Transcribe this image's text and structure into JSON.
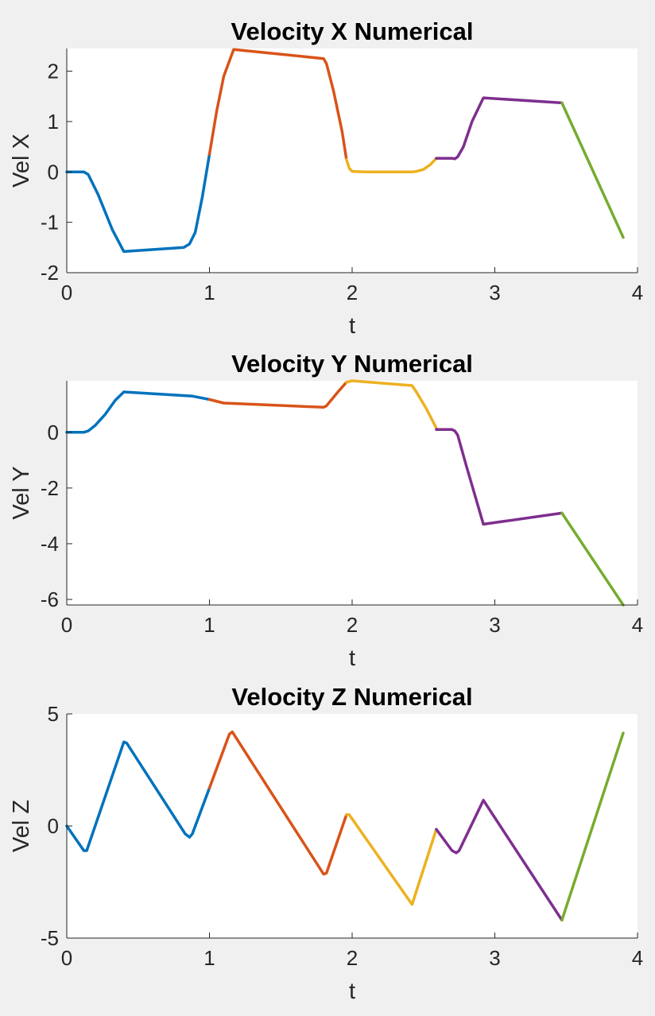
{
  "colors": {
    "background": "#f0f0f0",
    "axes": "#ffffff",
    "axis_line": "#262626",
    "seg1": "#0072BD",
    "seg2": "#D95319",
    "seg3": "#EDB120",
    "seg4": "#7E2F8E",
    "seg5": "#77AC30"
  },
  "chart_data": [
    {
      "type": "line",
      "title": "Velocity X Numerical",
      "xlabel": "t",
      "ylabel": "Vel X",
      "xlim": [
        0,
        4
      ],
      "ylim": [
        -2,
        2.45
      ],
      "xticks": [
        "0",
        "1",
        "2",
        "3",
        "4"
      ],
      "yticks": [
        "-2",
        "-1",
        "0",
        "1",
        "2"
      ],
      "grid": false,
      "series": [
        {
          "color": "#0072BD",
          "x": [
            0,
            0.12,
            0.15,
            0.22,
            0.32,
            0.4,
            0.82,
            0.86,
            0.9,
            0.95,
            1.0
          ],
          "y": [
            0,
            0,
            -0.05,
            -0.45,
            -1.15,
            -1.58,
            -1.5,
            -1.43,
            -1.2,
            -0.5,
            0.35
          ]
        },
        {
          "color": "#D95319",
          "x": [
            1.0,
            1.05,
            1.1,
            1.15,
            1.17,
            1.8,
            1.82,
            1.87,
            1.93,
            1.96
          ],
          "y": [
            0.35,
            1.2,
            1.9,
            2.28,
            2.43,
            2.25,
            2.15,
            1.6,
            0.8,
            0.25
          ]
        },
        {
          "color": "#EDB120",
          "x": [
            1.96,
            1.98,
            2.0,
            2.1,
            2.42,
            2.45,
            2.5,
            2.55,
            2.59
          ],
          "y": [
            0.25,
            0.07,
            0.01,
            0.0,
            0.0,
            0.01,
            0.05,
            0.15,
            0.27
          ]
        },
        {
          "color": "#7E2F8E",
          "x": [
            2.59,
            2.7,
            2.72,
            2.74,
            2.78,
            2.84,
            2.92,
            3.47
          ],
          "y": [
            0.27,
            0.27,
            0.26,
            0.3,
            0.5,
            1.0,
            1.47,
            1.37
          ]
        },
        {
          "color": "#77AC30",
          "x": [
            3.47,
            3.9
          ],
          "y": [
            1.37,
            -1.3
          ]
        }
      ]
    },
    {
      "type": "line",
      "title": "Velocity Y Numerical",
      "xlabel": "t",
      "ylabel": "Vel Y",
      "xlim": [
        0,
        4
      ],
      "ylim": [
        -6.2,
        1.85
      ],
      "xticks": [
        "0",
        "1",
        "2",
        "3",
        "4"
      ],
      "yticks": [
        "-6",
        "-4",
        "-2",
        "0"
      ],
      "grid": false,
      "series": [
        {
          "color": "#0072BD",
          "x": [
            0,
            0.12,
            0.15,
            0.2,
            0.27,
            0.34,
            0.4,
            0.88,
            1.0
          ],
          "y": [
            0,
            0,
            0.05,
            0.25,
            0.65,
            1.15,
            1.45,
            1.3,
            1.18
          ]
        },
        {
          "color": "#D95319",
          "x": [
            1.0,
            1.1,
            1.8,
            1.82,
            1.9,
            1.96
          ],
          "y": [
            1.18,
            1.05,
            0.9,
            0.95,
            1.45,
            1.8
          ]
        },
        {
          "color": "#EDB120",
          "x": [
            1.96,
            2.0,
            2.42,
            2.45,
            2.52,
            2.59
          ],
          "y": [
            1.8,
            1.85,
            1.68,
            1.45,
            0.85,
            0.15
          ]
        },
        {
          "color": "#7E2F8E",
          "x": [
            2.59,
            2.7,
            2.72,
            2.74,
            2.8,
            2.92,
            3.47
          ],
          "y": [
            0.1,
            0.1,
            0.05,
            -0.1,
            -1.2,
            -3.3,
            -2.9
          ]
        },
        {
          "color": "#77AC30",
          "x": [
            3.47,
            3.9
          ],
          "y": [
            -2.9,
            -6.2
          ]
        }
      ]
    },
    {
      "type": "line",
      "title": "Velocity Z Numerical",
      "xlabel": "t",
      "ylabel": "Vel Z",
      "xlim": [
        0,
        4
      ],
      "ylim": [
        -5,
        5
      ],
      "xticks": [
        "0",
        "1",
        "2",
        "3",
        "4"
      ],
      "yticks": [
        "-5",
        "0",
        "5"
      ],
      "grid": false,
      "series": [
        {
          "color": "#0072BD",
          "x": [
            0,
            0.12,
            0.14,
            0.4,
            0.42,
            0.83,
            0.86,
            0.88,
            1.0
          ],
          "y": [
            0,
            -1.1,
            -1.1,
            3.75,
            3.7,
            -0.35,
            -0.5,
            -0.35,
            1.7
          ]
        },
        {
          "color": "#D95319",
          "x": [
            1.0,
            1.14,
            1.16,
            1.8,
            1.82,
            1.96
          ],
          "y": [
            1.7,
            4.1,
            4.2,
            -2.15,
            -2.1,
            0.5
          ]
        },
        {
          "color": "#EDB120",
          "x": [
            1.96,
            1.98,
            2.42,
            2.59
          ],
          "y": [
            0.5,
            0.5,
            -3.5,
            -0.15
          ]
        },
        {
          "color": "#7E2F8E",
          "x": [
            2.59,
            2.7,
            2.73,
            2.75,
            2.92,
            3.47
          ],
          "y": [
            -0.15,
            -1.1,
            -1.2,
            -1.1,
            1.15,
            -4.2
          ]
        },
        {
          "color": "#77AC30",
          "x": [
            3.47,
            3.9
          ],
          "y": [
            -4.2,
            4.15
          ]
        }
      ]
    }
  ]
}
